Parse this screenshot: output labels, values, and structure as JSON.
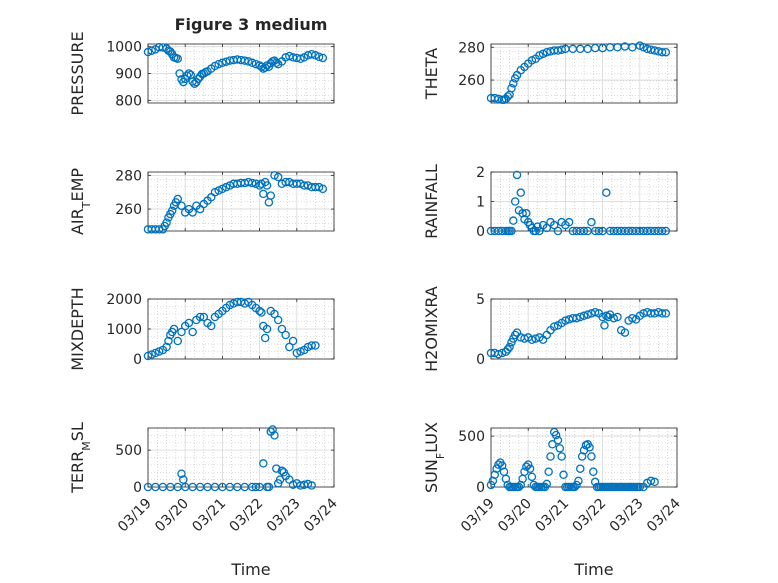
{
  "figure": {
    "title": "Figure 3 medium",
    "xlabel": "Time"
  },
  "colors": {
    "marker": "#0072bd",
    "axes": "#262626",
    "grid_major": "#d9d9d9",
    "grid_minor": "#bfbfbf"
  },
  "chart_data": [
    {
      "type": "scatter",
      "ylabel": "PRESSURE",
      "ylim": [
        790,
        1010
      ],
      "yticks": [
        800,
        900,
        1000
      ],
      "xlim": [
        0,
        5
      ],
      "xticks_shown": false,
      "grid": true,
      "minor_grid": true,
      "x": [
        0.0,
        0.1,
        0.2,
        0.3,
        0.4,
        0.5,
        0.55,
        0.6,
        0.65,
        0.7,
        0.75,
        0.8,
        0.85,
        0.9,
        0.95,
        1.0,
        1.05,
        1.1,
        1.15,
        1.2,
        1.25,
        1.3,
        1.35,
        1.4,
        1.45,
        1.5,
        1.55,
        1.6,
        1.7,
        1.8,
        1.9,
        2.0,
        2.1,
        2.2,
        2.3,
        2.4,
        2.5,
        2.6,
        2.7,
        2.8,
        2.9,
        3.0,
        3.05,
        3.1,
        3.15,
        3.2,
        3.25,
        3.3,
        3.35,
        3.4,
        3.45,
        3.5,
        3.6,
        3.7,
        3.8,
        3.9,
        4.0,
        4.1,
        4.2,
        4.3,
        4.4,
        4.5,
        4.6,
        4.7
      ],
      "y": [
        980,
        985,
        990,
        998,
        997,
        993,
        985,
        982,
        972,
        960,
        958,
        955,
        900,
        878,
        868,
        880,
        892,
        900,
        895,
        870,
        862,
        868,
        880,
        888,
        898,
        900,
        905,
        908,
        918,
        928,
        935,
        940,
        944,
        948,
        950,
        952,
        950,
        948,
        945,
        940,
        935,
        930,
        925,
        918,
        922,
        930,
        925,
        938,
        945,
        948,
        940,
        935,
        945,
        960,
        965,
        960,
        958,
        955,
        960,
        968,
        972,
        968,
        962,
        958
      ]
    },
    {
      "type": "scatter",
      "ylabel": "THETA",
      "ylim": [
        246,
        282
      ],
      "yticks": [
        260,
        280
      ],
      "xlim": [
        0,
        5
      ],
      "xticks_shown": false,
      "grid": true,
      "minor_grid": true,
      "x": [
        0.0,
        0.1,
        0.2,
        0.3,
        0.35,
        0.4,
        0.45,
        0.5,
        0.55,
        0.6,
        0.65,
        0.7,
        0.8,
        0.9,
        1.0,
        1.1,
        1.2,
        1.3,
        1.4,
        1.5,
        1.6,
        1.7,
        1.8,
        1.9,
        2.0,
        2.2,
        2.4,
        2.6,
        2.8,
        3.0,
        3.2,
        3.4,
        3.6,
        3.8,
        4.0,
        4.1,
        4.2,
        4.3,
        4.4,
        4.5,
        4.6,
        4.7
      ],
      "y": [
        249,
        249,
        248.5,
        248,
        248,
        248.5,
        250,
        251,
        255,
        258,
        261,
        263,
        266,
        268,
        270,
        272,
        273,
        275,
        276,
        277,
        277.5,
        278,
        278,
        278.5,
        279,
        279,
        279,
        279,
        279.5,
        279.5,
        280,
        280,
        280.5,
        280,
        281,
        280,
        279,
        278.5,
        278,
        277.5,
        277,
        277
      ]
    },
    {
      "type": "scatter",
      "ylabel": "AIR_T_EMP",
      "ylim": [
        247,
        282
      ],
      "yticks": [
        260,
        280
      ],
      "xlim": [
        0,
        5
      ],
      "xticks_shown": false,
      "grid": true,
      "minor_grid": true,
      "x": [
        0.0,
        0.1,
        0.2,
        0.3,
        0.4,
        0.45,
        0.5,
        0.55,
        0.6,
        0.65,
        0.7,
        0.75,
        0.8,
        0.9,
        1.0,
        1.1,
        1.2,
        1.3,
        1.4,
        1.5,
        1.6,
        1.7,
        1.8,
        1.9,
        2.0,
        2.1,
        2.2,
        2.3,
        2.4,
        2.5,
        2.6,
        2.7,
        2.8,
        2.9,
        3.0,
        3.05,
        3.1,
        3.15,
        3.2,
        3.25,
        3.3,
        3.4,
        3.5,
        3.6,
        3.7,
        3.8,
        3.9,
        4.0,
        4.1,
        4.2,
        4.3,
        4.4,
        4.5,
        4.6,
        4.7
      ],
      "y": [
        248,
        248,
        248,
        248,
        248,
        250,
        252,
        255,
        257,
        259,
        262,
        264,
        266,
        262,
        258,
        260,
        258,
        262,
        260,
        263,
        265,
        267,
        270,
        271,
        272,
        273,
        274,
        275,
        275,
        275.5,
        275.5,
        276,
        275.5,
        275,
        274,
        275,
        269,
        276,
        274,
        264,
        268,
        280,
        279,
        275,
        276,
        276,
        275,
        275,
        275,
        274,
        274,
        273,
        273,
        273,
        272
      ]
    },
    {
      "type": "scatter",
      "ylabel": "RAINFALL",
      "ylim": [
        0,
        2
      ],
      "yticks": [
        0,
        1,
        2
      ],
      "xlim": [
        0,
        5
      ],
      "xticks_shown": false,
      "grid": true,
      "minor_grid": true,
      "x": [
        0.0,
        0.1,
        0.2,
        0.3,
        0.4,
        0.45,
        0.5,
        0.55,
        0.6,
        0.65,
        0.7,
        0.75,
        0.8,
        0.85,
        0.9,
        0.95,
        1.0,
        1.05,
        1.1,
        1.15,
        1.2,
        1.25,
        1.3,
        1.4,
        1.5,
        1.6,
        1.7,
        1.8,
        1.9,
        2.0,
        2.1,
        2.2,
        2.3,
        2.4,
        2.5,
        2.6,
        2.7,
        2.8,
        2.9,
        3.0,
        3.1,
        3.2,
        3.3,
        3.4,
        3.5,
        3.6,
        3.7,
        3.8,
        3.9,
        4.0,
        4.1,
        4.2,
        4.3,
        4.4,
        4.5,
        4.6,
        4.7
      ],
      "y": [
        0,
        0,
        0,
        0,
        0,
        0,
        0,
        0,
        0.35,
        1.0,
        1.9,
        0.7,
        1.3,
        0.6,
        0.4,
        0.6,
        0.3,
        0.2,
        0.1,
        0,
        0,
        0.15,
        0,
        0.2,
        0.1,
        0.3,
        0.2,
        0,
        0.3,
        0.2,
        0.3,
        0,
        0,
        0,
        0,
        0,
        0.3,
        0,
        0,
        0,
        1.3,
        0,
        0,
        0,
        0,
        0,
        0,
        0,
        0,
        0,
        0,
        0,
        0,
        0,
        0,
        0,
        0
      ]
    },
    {
      "type": "scatter",
      "ylabel": "MIXDEPTH",
      "ylim": [
        0,
        2000
      ],
      "yticks": [
        0,
        1000,
        2000
      ],
      "xlim": [
        0,
        5
      ],
      "xticks_shown": false,
      "grid": true,
      "minor_grid": true,
      "x": [
        0.0,
        0.1,
        0.2,
        0.3,
        0.4,
        0.5,
        0.55,
        0.6,
        0.65,
        0.7,
        0.8,
        0.9,
        1.0,
        1.1,
        1.2,
        1.3,
        1.4,
        1.5,
        1.6,
        1.7,
        1.8,
        1.9,
        2.0,
        2.1,
        2.2,
        2.3,
        2.4,
        2.5,
        2.6,
        2.7,
        2.8,
        2.9,
        3.0,
        3.05,
        3.1,
        3.15,
        3.2,
        3.3,
        3.4,
        3.5,
        3.6,
        3.7,
        3.8,
        3.9,
        4.0,
        4.1,
        4.2,
        4.3,
        4.4,
        4.5
      ],
      "y": [
        100,
        150,
        200,
        250,
        300,
        400,
        600,
        800,
        900,
        1000,
        600,
        900,
        1100,
        1200,
        900,
        1300,
        1400,
        1400,
        1200,
        1100,
        1400,
        1500,
        1600,
        1700,
        1800,
        1850,
        1900,
        1900,
        1850,
        1900,
        1800,
        1700,
        1600,
        1550,
        1100,
        700,
        1000,
        1600,
        1500,
        1300,
        1000,
        800,
        400,
        600,
        200,
        250,
        300,
        400,
        450,
        450
      ]
    },
    {
      "type": "scatter",
      "ylabel": "H2OMIXRA",
      "ylim": [
        0,
        5
      ],
      "yticks": [
        0,
        5
      ],
      "xlim": [
        0,
        5
      ],
      "xticks_shown": false,
      "grid": true,
      "minor_grid": true,
      "x": [
        0.0,
        0.1,
        0.2,
        0.3,
        0.4,
        0.45,
        0.5,
        0.55,
        0.6,
        0.65,
        0.7,
        0.8,
        0.9,
        1.0,
        1.1,
        1.2,
        1.3,
        1.4,
        1.5,
        1.6,
        1.7,
        1.8,
        1.9,
        2.0,
        2.1,
        2.2,
        2.3,
        2.4,
        2.5,
        2.6,
        2.7,
        2.8,
        2.9,
        3.0,
        3.05,
        3.1,
        3.15,
        3.2,
        3.3,
        3.4,
        3.5,
        3.6,
        3.7,
        3.8,
        3.9,
        4.0,
        4.1,
        4.2,
        4.3,
        4.4,
        4.5,
        4.6,
        4.7
      ],
      "y": [
        0.5,
        0.5,
        0.4,
        0.5,
        0.6,
        0.8,
        1.0,
        1.4,
        1.7,
        2.0,
        2.2,
        1.8,
        1.7,
        1.8,
        1.6,
        1.7,
        1.8,
        1.6,
        2.0,
        2.4,
        2.7,
        2.8,
        3.0,
        3.2,
        3.3,
        3.4,
        3.4,
        3.5,
        3.6,
        3.7,
        3.8,
        3.9,
        3.8,
        3.5,
        2.8,
        3.6,
        3.5,
        3.7,
        3.4,
        3.5,
        2.4,
        2.2,
        3.2,
        3.4,
        3.3,
        3.6,
        3.8,
        3.9,
        3.8,
        3.8,
        3.9,
        3.8,
        3.8
      ]
    },
    {
      "type": "scatter",
      "ylabel": "TERR_M_SL",
      "ylim": [
        0,
        800
      ],
      "yticks": [
        0,
        500
      ],
      "xlim": [
        0,
        5
      ],
      "xticks_shown": false,
      "grid": true,
      "minor_grid": true,
      "x": [
        0.0,
        0.2,
        0.4,
        0.6,
        0.8,
        0.9,
        0.95,
        1.0,
        1.2,
        1.4,
        1.6,
        1.8,
        2.0,
        2.2,
        2.4,
        2.6,
        2.8,
        2.9,
        3.0,
        3.1,
        3.2,
        3.25,
        3.3,
        3.35,
        3.4,
        3.45,
        3.5,
        3.55,
        3.6,
        3.65,
        3.7,
        3.8,
        3.9,
        4.0,
        4.1,
        4.2,
        4.3,
        4.4
      ],
      "y": [
        0,
        0,
        0,
        0,
        0,
        180,
        100,
        0,
        0,
        0,
        0,
        0,
        0,
        0,
        0,
        0,
        0,
        0,
        0,
        320,
        0,
        0,
        750,
        780,
        700,
        250,
        50,
        100,
        220,
        200,
        150,
        100,
        30,
        50,
        20,
        30,
        40,
        20
      ]
    },
    {
      "type": "scatter",
      "ylabel": "SUN_F_LUX",
      "ylim": [
        0,
        580
      ],
      "yticks": [
        0,
        500
      ],
      "xlim": [
        0,
        5
      ],
      "xticks": [
        0,
        1,
        2,
        3,
        4,
        5
      ],
      "xticklabels": [
        "03/19",
        "03/20",
        "03/21",
        "03/22",
        "03/23",
        "03/24"
      ],
      "grid": true,
      "minor_grid": true,
      "x": [
        0.0,
        0.05,
        0.1,
        0.15,
        0.2,
        0.25,
        0.3,
        0.35,
        0.4,
        0.45,
        0.5,
        0.55,
        0.6,
        0.65,
        0.7,
        0.75,
        0.8,
        0.85,
        0.9,
        0.95,
        1.0,
        1.05,
        1.1,
        1.15,
        1.2,
        1.25,
        1.3,
        1.35,
        1.4,
        1.45,
        1.5,
        1.55,
        1.6,
        1.65,
        1.7,
        1.75,
        1.8,
        1.85,
        1.9,
        1.95,
        2.0,
        2.05,
        2.1,
        2.15,
        2.2,
        2.25,
        2.3,
        2.35,
        2.4,
        2.45,
        2.5,
        2.55,
        2.6,
        2.65,
        2.7,
        2.75,
        2.8,
        2.85,
        2.9,
        2.95,
        3.0,
        3.05,
        3.1,
        3.15,
        3.2,
        3.25,
        3.3,
        3.35,
        3.4,
        3.45,
        3.5,
        3.55,
        3.6,
        3.65,
        3.7,
        3.75,
        3.8,
        3.85,
        3.9,
        3.95,
        4.0,
        4.1,
        4.2,
        4.3,
        4.4
      ],
      "y": [
        20,
        60,
        120,
        180,
        220,
        240,
        210,
        150,
        80,
        20,
        0,
        0,
        0,
        0,
        0,
        0,
        20,
        80,
        150,
        200,
        220,
        180,
        100,
        20,
        0,
        0,
        0,
        0,
        0,
        0,
        30,
        150,
        300,
        420,
        540,
        510,
        460,
        380,
        300,
        120,
        0,
        0,
        0,
        0,
        0,
        0,
        20,
        60,
        180,
        300,
        360,
        410,
        420,
        390,
        300,
        150,
        50,
        0,
        0,
        0,
        0,
        0,
        0,
        0,
        0,
        0,
        0,
        0,
        0,
        0,
        0,
        0,
        0,
        0,
        0,
        0,
        0,
        0,
        0,
        0,
        0,
        0,
        40,
        60,
        50
      ]
    }
  ]
}
